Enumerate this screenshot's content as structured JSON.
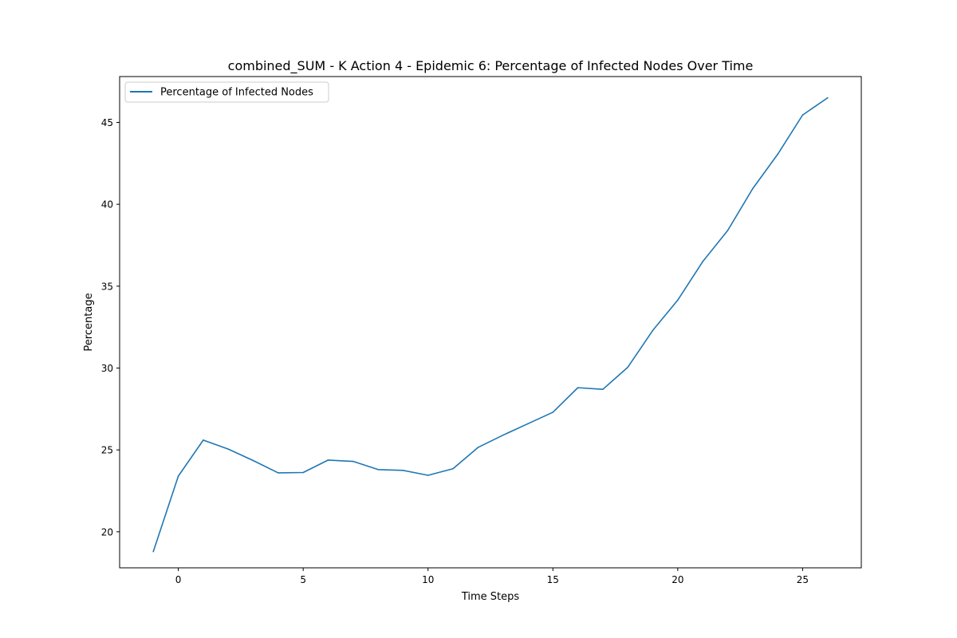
{
  "chart_data": {
    "type": "line",
    "title": "combined_SUM - K Action 4 - Epidemic 6: Percentage of Infected Nodes Over Time",
    "xlabel": "Time Steps",
    "ylabel": "Percentage",
    "xlim": [
      -2.35,
      27.35
    ],
    "ylim": [
      17.8,
      47.8
    ],
    "xticks": [
      0,
      5,
      10,
      15,
      20,
      25
    ],
    "yticks": [
      20,
      25,
      30,
      35,
      40,
      45
    ],
    "grid": false,
    "legend_position": "upper left",
    "series": [
      {
        "name": "Percentage of Infected Nodes",
        "color": "#1f77b4",
        "x": [
          -1,
          0,
          1,
          2,
          3,
          4,
          5,
          6,
          7,
          8,
          9,
          10,
          11,
          12,
          13,
          14,
          15,
          16,
          17,
          18,
          19,
          20,
          21,
          22,
          23,
          24,
          25,
          26
        ],
        "y": [
          18.8,
          23.4,
          25.6,
          25.05,
          24.35,
          23.6,
          23.62,
          24.38,
          24.3,
          23.8,
          23.75,
          23.45,
          23.85,
          25.15,
          25.9,
          26.6,
          27.3,
          28.8,
          28.7,
          30.05,
          32.3,
          34.15,
          36.5,
          38.4,
          40.95,
          43.05,
          45.45,
          46.5
        ]
      }
    ]
  }
}
